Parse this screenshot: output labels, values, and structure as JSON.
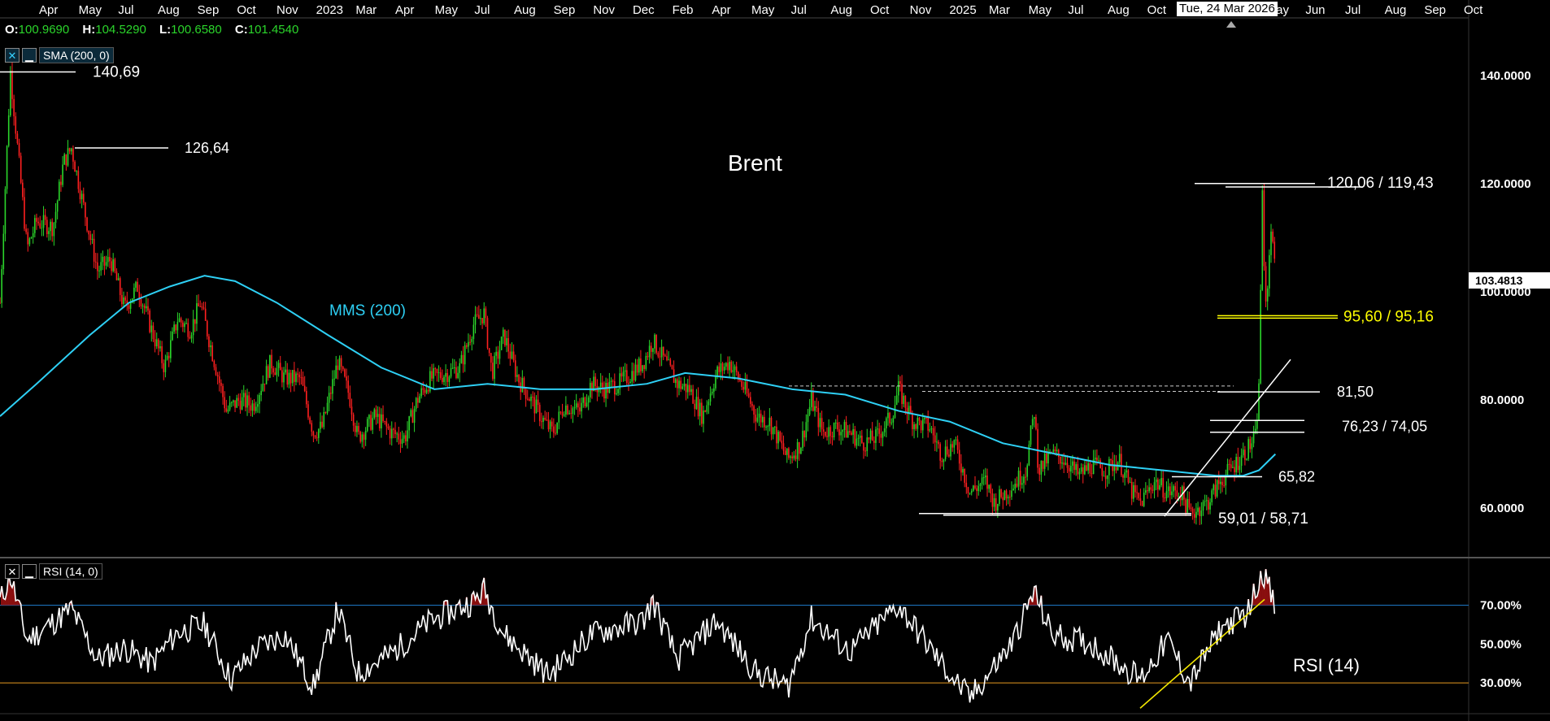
{
  "ohlc": {
    "o_label": "O:",
    "o": "100.9690",
    "h_label": "H:",
    "h": "104.5290",
    "l_label": "L:",
    "l": "100.6580",
    "c_label": "C:",
    "c": "101.4540"
  },
  "indicators": {
    "sma_label": "SMA (200, 0)",
    "rsi_label": "RSI (14, 0)",
    "close_icon": "close-icon",
    "minimize_icon": "minimize-icon"
  },
  "current_price": "103.4813",
  "crosshair_date": "Tue, 24 Mar 2026",
  "colors": {
    "up": "#2bd52b",
    "down": "#ff2020",
    "sma": "#2ed0f5",
    "rsi_upper": "#1f7fd1",
    "rsi_lower": "#e6991f",
    "trend_yellow": "#f2e600",
    "text_yellow": "#ffff00"
  },
  "chart_data": [
    {
      "type": "candlestick",
      "title": "Brent",
      "xlabel": "",
      "ylabel": "",
      "x_tick_labels": [
        "Apr",
        "May",
        "Jul",
        "Aug",
        "Sep",
        "Oct",
        "Nov",
        "2023",
        "Mar",
        "Apr",
        "May",
        "Jul",
        "Aug",
        "Sep",
        "Nov",
        "Dec",
        "Feb",
        "Apr",
        "May",
        "Jul",
        "Aug",
        "Oct",
        "Nov",
        "2025",
        "Mar",
        "May",
        "Jul",
        "Aug",
        "Oct",
        "Nov",
        "20",
        "May",
        "Jun",
        "Jul",
        "Aug",
        "Sep",
        "Oct"
      ],
      "y_ticks": [
        "140.0000",
        "120.0000",
        "100.0000",
        "80.0000",
        "60.0000"
      ],
      "ylim": [
        51,
        151
      ],
      "xlim": [
        "2022-03-20",
        "2026-11-01"
      ],
      "grid": false,
      "series": [
        {
          "name": "",
          "color": "candles",
          "values_note": "",
          "points": [
            [
              "2022-03-20",
              98
            ],
            [
              "2022-04-01",
              140.7
            ],
            [
              "2022-04-20",
              108
            ],
            [
              "2022-05-01",
              113
            ],
            [
              "2022-05-20",
              112
            ],
            [
              "2022-06-01",
              124
            ],
            [
              "2022-06-10",
              126.6
            ],
            [
              "2022-06-25",
              115
            ],
            [
              "2022-07-10",
              104
            ],
            [
              "2022-07-25",
              106
            ],
            [
              "2022-08-10",
              97
            ],
            [
              "2022-08-25",
              101
            ],
            [
              "2022-09-10",
              93
            ],
            [
              "2022-09-25",
              86
            ],
            [
              "2022-10-10",
              95
            ],
            [
              "2022-10-25",
              93
            ],
            [
              "2022-11-05",
              98
            ],
            [
              "2022-11-20",
              88
            ],
            [
              "2022-12-05",
              78
            ],
            [
              "2022-12-20",
              80
            ],
            [
              "2023-01-05",
              79
            ],
            [
              "2023-01-25",
              87
            ],
            [
              "2023-02-10",
              84
            ],
            [
              "2023-02-28",
              84
            ],
            [
              "2023-03-15",
              74
            ],
            [
              "2023-03-25",
              75
            ],
            [
              "2023-04-12",
              87
            ],
            [
              "2023-04-25",
              81
            ],
            [
              "2023-05-05",
              73
            ],
            [
              "2023-05-25",
              77
            ],
            [
              "2023-06-12",
              74
            ],
            [
              "2023-06-28",
              73
            ],
            [
              "2023-07-12",
              80
            ],
            [
              "2023-07-28",
              84
            ],
            [
              "2023-08-15",
              85
            ],
            [
              "2023-08-30",
              86
            ],
            [
              "2023-09-15",
              94
            ],
            [
              "2023-09-27",
              96
            ],
            [
              "2023-10-06",
              85
            ],
            [
              "2023-10-20",
              92
            ],
            [
              "2023-11-05",
              84
            ],
            [
              "2023-11-20",
              80
            ],
            [
              "2023-12-05",
              76
            ],
            [
              "2023-12-15",
              74
            ],
            [
              "2023-12-28",
              79
            ],
            [
              "2024-01-15",
              78
            ],
            [
              "2024-01-28",
              83
            ],
            [
              "2024-02-12",
              82
            ],
            [
              "2024-02-28",
              83
            ],
            [
              "2024-03-15",
              85
            ],
            [
              "2024-03-28",
              87
            ],
            [
              "2024-04-08",
              91
            ],
            [
              "2024-04-22",
              87
            ],
            [
              "2024-05-06",
              83
            ],
            [
              "2024-05-20",
              82
            ],
            [
              "2024-06-04",
              77
            ],
            [
              "2024-06-20",
              85
            ],
            [
              "2024-07-05",
              87
            ],
            [
              "2024-07-22",
              82
            ],
            [
              "2024-08-05",
              77
            ],
            [
              "2024-08-20",
              76
            ],
            [
              "2024-09-10",
              69
            ],
            [
              "2024-09-25",
              72
            ],
            [
              "2024-10-07",
              80
            ],
            [
              "2024-10-20",
              74
            ],
            [
              "2024-11-05",
              75
            ],
            [
              "2024-11-20",
              74
            ],
            [
              "2024-12-05",
              72
            ],
            [
              "2024-12-20",
              73
            ],
            [
              "2025-01-07",
              77
            ],
            [
              "2025-01-15",
              82
            ],
            [
              "2025-02-01",
              76
            ],
            [
              "2025-02-20",
              75
            ],
            [
              "2025-03-05",
              70
            ],
            [
              "2025-03-20",
              72
            ],
            [
              "2025-04-07",
              63
            ],
            [
              "2025-04-25",
              65
            ],
            [
              "2025-05-05",
              61
            ],
            [
              "2025-05-25",
              64
            ],
            [
              "2025-06-10",
              67
            ],
            [
              "2025-06-20",
              78
            ],
            [
              "2025-06-25",
              67
            ],
            [
              "2025-07-10",
              70
            ],
            [
              "2025-07-25",
              69
            ],
            [
              "2025-08-10",
              66
            ],
            [
              "2025-08-25",
              68
            ],
            [
              "2025-09-10",
              67
            ],
            [
              "2025-09-25",
              69
            ],
            [
              "2025-10-10",
              63
            ],
            [
              "2025-10-20",
              61
            ],
            [
              "2025-11-05",
              65
            ],
            [
              "2025-11-20",
              63
            ],
            [
              "2025-12-05",
              63
            ],
            [
              "2025-12-16",
              59
            ],
            [
              "2026-01-05",
              61
            ],
            [
              "2026-01-20",
              65
            ],
            [
              "2026-02-05",
              68
            ],
            [
              "2026-02-20",
              71
            ],
            [
              "2026-03-01",
              73
            ],
            [
              "2026-03-05",
              82
            ],
            [
              "2026-03-09",
              119.5
            ],
            [
              "2026-03-12",
              95
            ],
            [
              "2026-03-16",
              104
            ],
            [
              "2026-03-20",
              114
            ],
            [
              "2026-03-24",
              101.45
            ]
          ]
        },
        {
          "name": "MMS (200)",
          "color": "#2ed0f5",
          "points": [
            [
              "2022-03-20",
              77
            ],
            [
              "2022-05-01",
              83
            ],
            [
              "2022-07-01",
              92
            ],
            [
              "2022-08-15",
              98
            ],
            [
              "2022-10-01",
              101
            ],
            [
              "2022-11-10",
              103
            ],
            [
              "2022-12-15",
              102
            ],
            [
              "2023-02-01",
              98
            ],
            [
              "2023-04-01",
              92
            ],
            [
              "2023-06-01",
              86
            ],
            [
              "2023-08-01",
              82
            ],
            [
              "2023-10-01",
              83
            ],
            [
              "2023-12-01",
              82
            ],
            [
              "2024-02-01",
              82
            ],
            [
              "2024-04-01",
              83
            ],
            [
              "2024-05-15",
              85
            ],
            [
              "2024-07-15",
              84
            ],
            [
              "2024-09-15",
              82
            ],
            [
              "2024-11-15",
              81
            ],
            [
              "2025-01-15",
              78
            ],
            [
              "2025-03-15",
              76
            ],
            [
              "2025-05-15",
              72
            ],
            [
              "2025-07-15",
              70
            ],
            [
              "2025-09-15",
              68
            ],
            [
              "2025-11-15",
              67
            ],
            [
              "2026-01-15",
              66
            ],
            [
              "2026-02-15",
              66
            ],
            [
              "2026-03-05",
              67
            ],
            [
              "2026-03-24",
              70
            ]
          ]
        }
      ],
      "annotations": [
        {
          "text": "140,69",
          "value": 140.69
        },
        {
          "text": "126,64",
          "value": 126.64
        },
        {
          "text": "120,06 / 119,43",
          "value": 120.06
        },
        {
          "text": "95,60 / 95,16",
          "value": 95.6,
          "color": "yellow"
        },
        {
          "text": "81,50",
          "value": 81.5
        },
        {
          "text": "76,23 / 74,05",
          "value": 76.23
        },
        {
          "text": "65,82",
          "value": 65.82
        },
        {
          "text": "59,01 / 58,71",
          "value": 59.01
        },
        {
          "text": "MMS (200)",
          "value": 0,
          "color": "cyan"
        }
      ]
    },
    {
      "type": "line",
      "title": "RSI (14)",
      "xlabel": "",
      "ylabel": "",
      "y_ticks": [
        "70.00%",
        "50.00%",
        "30.00%"
      ],
      "ylim": [
        15,
        92
      ],
      "levels": [
        70,
        30
      ],
      "series": [
        {
          "name": "RSI (14)",
          "color": "#ffffff",
          "points": [
            [
              "2022-03-20",
              72
            ],
            [
              "2022-04-01",
              85
            ],
            [
              "2022-04-20",
              52
            ],
            [
              "2022-05-10",
              58
            ],
            [
              "2022-06-10",
              68
            ],
            [
              "2022-07-10",
              42
            ],
            [
              "2022-08-10",
              48
            ],
            [
              "2022-09-10",
              40
            ],
            [
              "2022-10-10",
              56
            ],
            [
              "2022-11-10",
              60
            ],
            [
              "2022-12-10",
              32
            ],
            [
              "2023-01-10",
              48
            ],
            [
              "2023-02-10",
              55
            ],
            [
              "2023-03-15",
              28
            ],
            [
              "2023-04-12",
              68
            ],
            [
              "2023-05-05",
              35
            ],
            [
              "2023-06-12",
              45
            ],
            [
              "2023-07-28",
              62
            ],
            [
              "2023-09-15",
              72
            ],
            [
              "2023-09-27",
              78
            ],
            [
              "2023-10-20",
              55
            ],
            [
              "2023-12-10",
              34
            ],
            [
              "2024-01-28",
              55
            ],
            [
              "2024-03-28",
              62
            ],
            [
              "2024-04-08",
              72
            ],
            [
              "2024-05-06",
              42
            ],
            [
              "2024-06-20",
              62
            ],
            [
              "2024-08-05",
              35
            ],
            [
              "2024-09-10",
              28
            ],
            [
              "2024-10-07",
              63
            ],
            [
              "2024-11-20",
              46
            ],
            [
              "2025-01-15",
              70
            ],
            [
              "2025-03-05",
              40
            ],
            [
              "2025-04-07",
              22
            ],
            [
              "2025-05-25",
              50
            ],
            [
              "2025-06-20",
              77
            ],
            [
              "2025-07-10",
              55
            ],
            [
              "2025-08-25",
              50
            ],
            [
              "2025-10-20",
              32
            ],
            [
              "2025-11-20",
              52
            ],
            [
              "2025-12-16",
              30
            ],
            [
              "2026-01-20",
              58
            ],
            [
              "2026-02-20",
              66
            ],
            [
              "2026-03-09",
              88
            ],
            [
              "2026-03-16",
              80
            ],
            [
              "2026-03-24",
              66
            ]
          ]
        }
      ],
      "annotations": [
        {
          "text": "RSI (14)",
          "value": 0
        }
      ]
    }
  ]
}
